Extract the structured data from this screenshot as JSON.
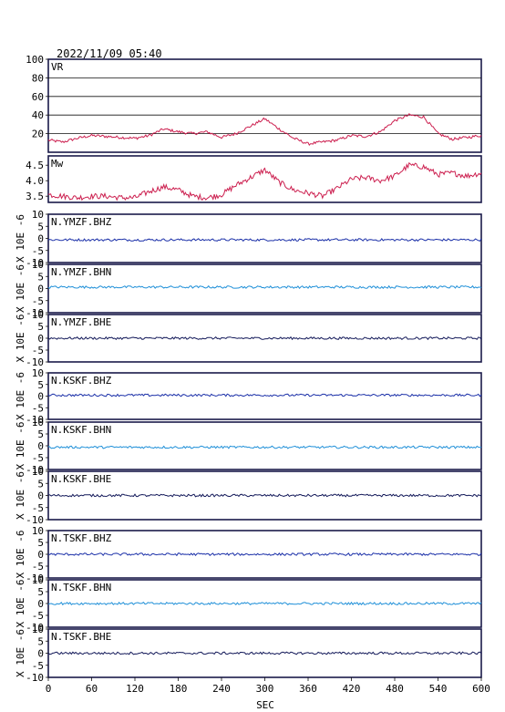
{
  "header": {
    "datetime": "2022/11/09 05:40"
  },
  "x_axis": {
    "label": "SEC",
    "ticks": [
      "0",
      "60",
      "120",
      "180",
      "240",
      "300",
      "360",
      "420",
      "480",
      "540",
      "600"
    ]
  },
  "chart_data": {
    "type": "line",
    "xlim": [
      0,
      600
    ],
    "xlabel": "SEC",
    "panels": [
      {
        "kind": "vr",
        "label": "VR",
        "ylim": [
          0,
          100
        ],
        "grid": true,
        "yticks": [
          "20",
          "40",
          "60",
          "80",
          "100"
        ],
        "color": "#cc1f4f",
        "x": [
          0,
          20,
          40,
          60,
          80,
          100,
          120,
          140,
          160,
          180,
          200,
          220,
          240,
          260,
          280,
          300,
          320,
          340,
          360,
          380,
          400,
          420,
          440,
          460,
          480,
          500,
          520,
          540,
          560,
          580,
          600
        ],
        "values": [
          13,
          11,
          15,
          18,
          17,
          16,
          15,
          18,
          25,
          22,
          20,
          22,
          16,
          20,
          28,
          36,
          25,
          15,
          9,
          11,
          13,
          18,
          17,
          22,
          34,
          40,
          38,
          20,
          14,
          16,
          18
        ]
      },
      {
        "kind": "mw",
        "label": "Mw",
        "ylim": [
          3.3,
          4.8
        ],
        "grid": false,
        "yticks": [
          "3.5",
          "4.0",
          "4.5"
        ],
        "color": "#cc1f4f",
        "x": [
          0,
          20,
          40,
          60,
          80,
          100,
          120,
          140,
          160,
          180,
          200,
          220,
          240,
          260,
          280,
          300,
          320,
          340,
          360,
          380,
          400,
          420,
          440,
          460,
          480,
          500,
          520,
          540,
          560,
          580,
          600
        ],
        "values": [
          3.55,
          3.5,
          3.45,
          3.5,
          3.5,
          3.45,
          3.45,
          3.65,
          3.8,
          3.7,
          3.5,
          3.45,
          3.55,
          3.85,
          4.1,
          4.35,
          3.95,
          3.7,
          3.6,
          3.5,
          3.75,
          4.05,
          4.1,
          4.0,
          4.15,
          4.5,
          4.45,
          4.2,
          4.25,
          4.15,
          4.25
        ]
      },
      {
        "kind": "wave",
        "label": "N.YMZF.BHZ",
        "ylim": [
          -10,
          10
        ],
        "yticks": [
          "10",
          "5",
          "0",
          "-5",
          "-10"
        ],
        "baseline": -0.6,
        "amplitude": 0.5,
        "color": "#1a2fa8"
      },
      {
        "kind": "wave",
        "label": "N.YMZF.BHN",
        "ylim": [
          -10,
          10
        ],
        "yticks": [
          "10",
          "5",
          "0",
          "-5",
          "-10"
        ],
        "baseline": 0.6,
        "amplitude": 0.5,
        "color": "#1e8fd8"
      },
      {
        "kind": "wave",
        "label": "N.YMZF.BHE",
        "ylim": [
          -10,
          10
        ],
        "yticks": [
          "10",
          "5",
          "0",
          "-5",
          "-10"
        ],
        "baseline": 0.0,
        "amplitude": 0.5,
        "color": "#141a5a"
      },
      {
        "kind": "wave",
        "label": "N.KSKF.BHZ",
        "ylim": [
          -10,
          10
        ],
        "yticks": [
          "10",
          "5",
          "0",
          "-5",
          "-10"
        ],
        "baseline": 0.4,
        "amplitude": 0.5,
        "color": "#1a2fa8"
      },
      {
        "kind": "wave",
        "label": "N.KSKF.BHN",
        "ylim": [
          -10,
          10
        ],
        "yticks": [
          "10",
          "5",
          "0",
          "-5",
          "-10"
        ],
        "baseline": -0.6,
        "amplitude": 0.5,
        "color": "#1e8fd8"
      },
      {
        "kind": "wave",
        "label": "N.KSKF.BHE",
        "ylim": [
          -10,
          10
        ],
        "yticks": [
          "10",
          "5",
          "0",
          "-5",
          "-10"
        ],
        "baseline": 0.0,
        "amplitude": 0.5,
        "color": "#141a5a"
      },
      {
        "kind": "wave",
        "label": "N.TSKF.BHZ",
        "ylim": [
          -10,
          10
        ],
        "yticks": [
          "10",
          "5",
          "0",
          "-5",
          "-10"
        ],
        "baseline": 0.0,
        "amplitude": 0.5,
        "color": "#1a2fa8"
      },
      {
        "kind": "wave",
        "label": "N.TSKF.BHN",
        "ylim": [
          -10,
          10
        ],
        "yticks": [
          "10",
          "5",
          "0",
          "-5",
          "-10"
        ],
        "baseline": 0.0,
        "amplitude": 0.5,
        "color": "#1e8fd8"
      },
      {
        "kind": "wave",
        "label": "N.TSKF.BHE",
        "ylim": [
          -10,
          10
        ],
        "yticks": [
          "10",
          "5",
          "0",
          "-5",
          "-10"
        ],
        "baseline": 0.0,
        "amplitude": 0.5,
        "color": "#141a5a"
      }
    ],
    "waveform_units": "X 10E -6"
  }
}
